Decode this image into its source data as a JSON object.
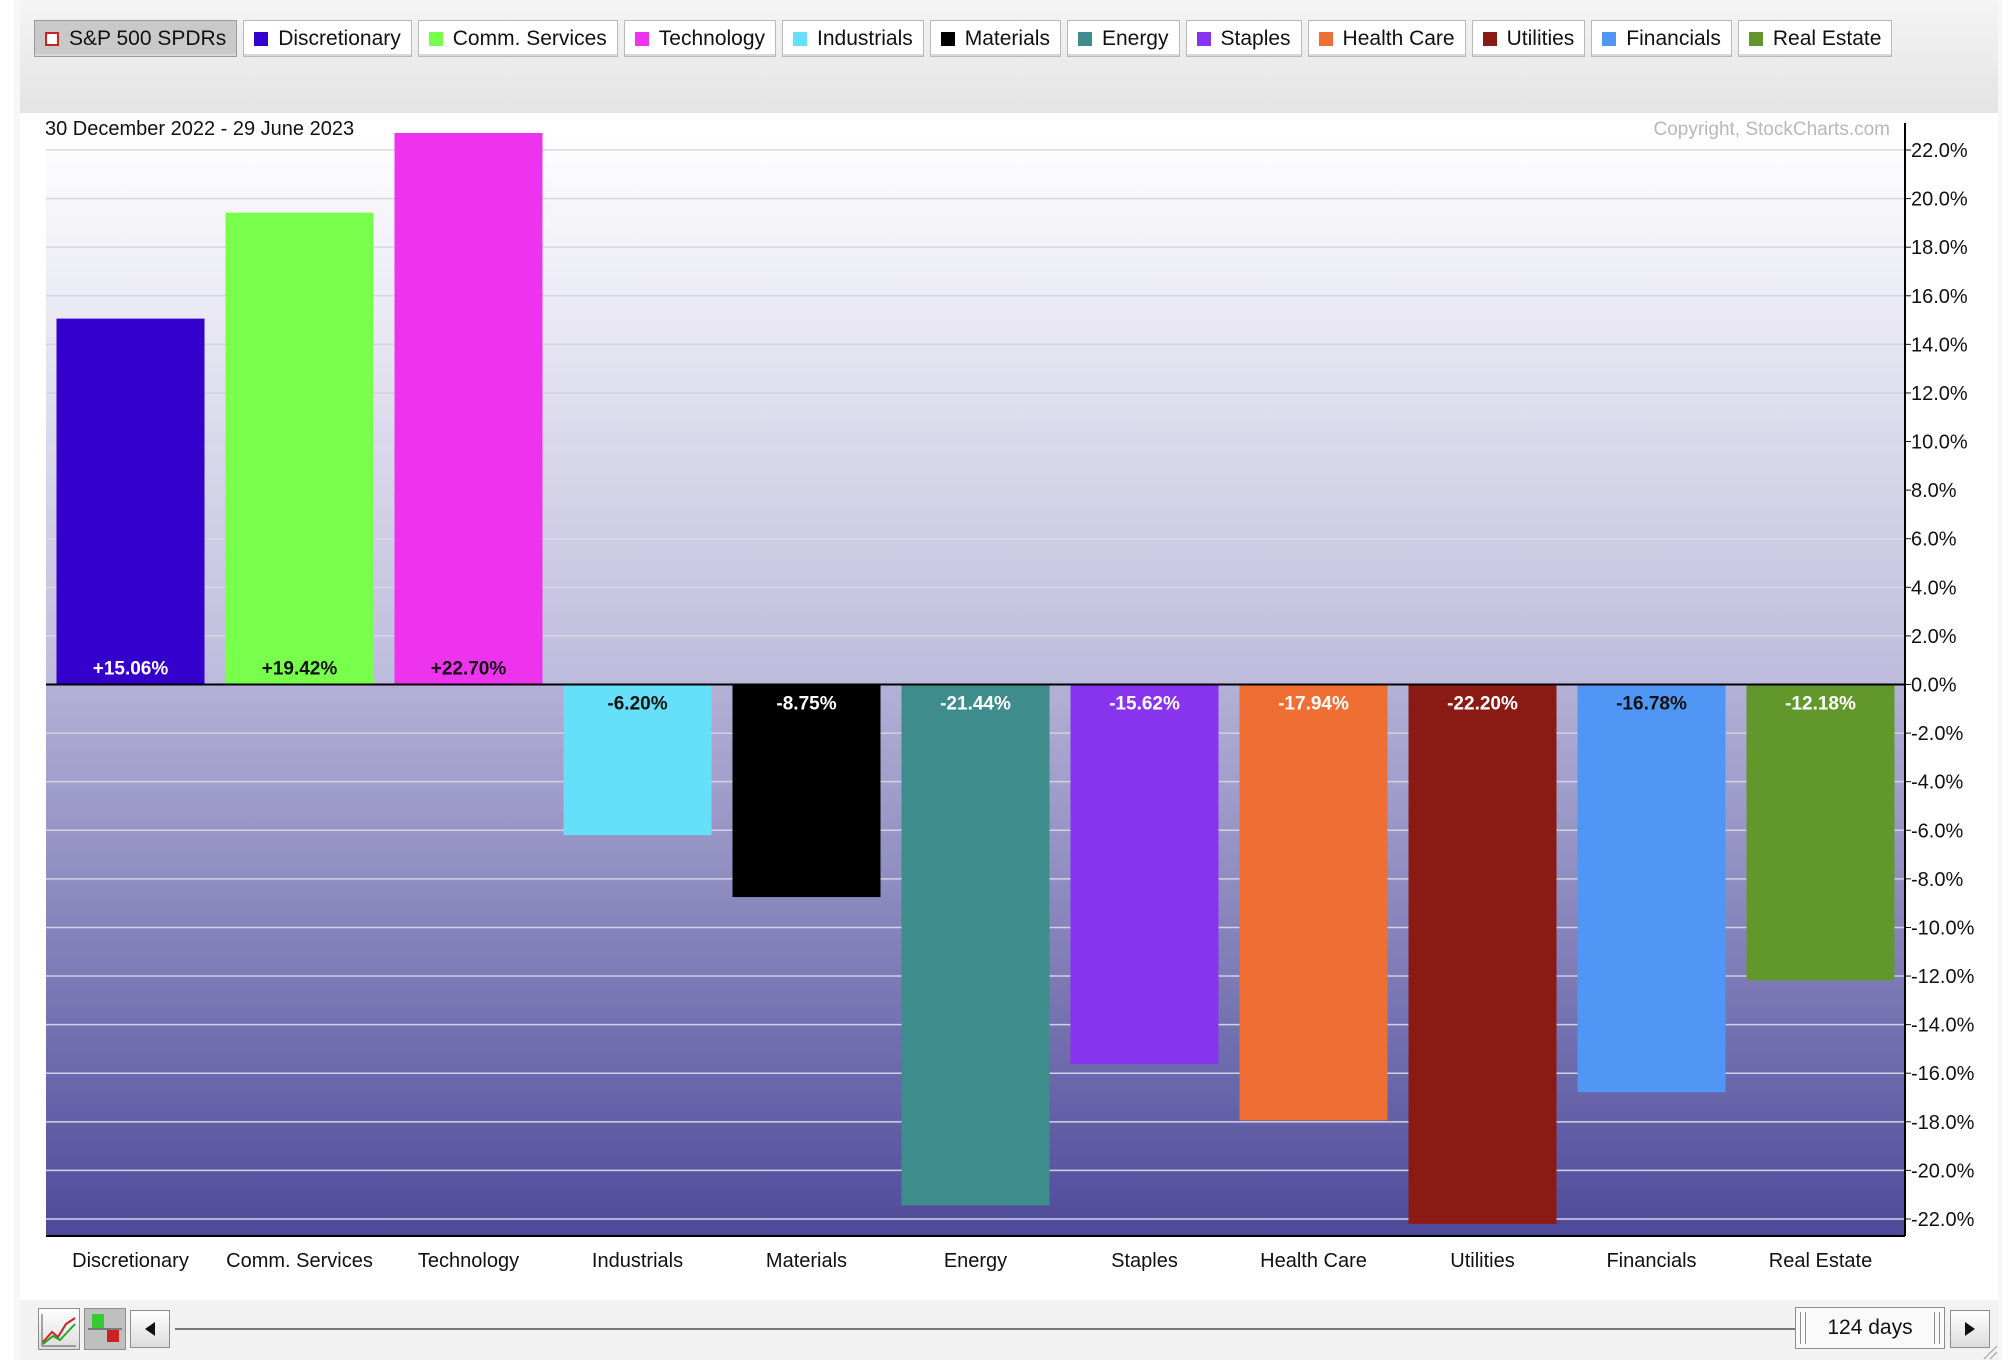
{
  "legend": [
    {
      "label": "S&P 500 SPDRs",
      "color": "#cc2222",
      "benchmark": true
    },
    {
      "label": "Discretionary",
      "color": "#3300cc"
    },
    {
      "label": "Comm. Services",
      "color": "#77ff4c"
    },
    {
      "label": "Technology",
      "color": "#ee33ee"
    },
    {
      "label": "Industrials",
      "color": "#66e0f8"
    },
    {
      "label": "Materials",
      "color": "#000000"
    },
    {
      "label": "Energy",
      "color": "#3f8c8c"
    },
    {
      "label": "Staples",
      "color": "#8833ee"
    },
    {
      "label": "Health Care",
      "color": "#ee6e33"
    },
    {
      "label": "Utilities",
      "color": "#8b1a14"
    },
    {
      "label": "Financials",
      "color": "#5097f5"
    },
    {
      "label": "Real Estate",
      "color": "#62982b"
    }
  ],
  "chart": {
    "date_range": "30 December 2022 - 29 June 2023",
    "copyright": "Copyright, StockCharts.com"
  },
  "chart_data": {
    "type": "bar",
    "categories": [
      "Discretionary",
      "Comm. Services",
      "Technology",
      "Industrials",
      "Materials",
      "Energy",
      "Staples",
      "Health Care",
      "Utilities",
      "Financials",
      "Real Estate"
    ],
    "values": [
      15.06,
      19.42,
      22.7,
      -6.2,
      -8.75,
      -21.44,
      -15.62,
      -17.94,
      -22.2,
      -16.78,
      -12.18
    ],
    "value_labels": [
      "+15.06%",
      "+19.42%",
      "+22.70%",
      "-6.20%",
      "-8.75%",
      "-21.44%",
      "-15.62%",
      "-17.94%",
      "-22.20%",
      "-16.78%",
      "-12.18%"
    ],
    "colors": [
      "#3300cc",
      "#77ff4c",
      "#ee33ee",
      "#66e0f8",
      "#000000",
      "#3f8c8c",
      "#8833ee",
      "#ee6e33",
      "#8b1a14",
      "#5097f5",
      "#62982b"
    ],
    "value_label_colors": [
      "#ffffff",
      "#111111",
      "#111111",
      "#111111",
      "#ffffff",
      "#ffffff",
      "#ffffff",
      "#ffffff",
      "#ffffff",
      "#111111",
      "#ffffff"
    ],
    "y_ticks": [
      22,
      20,
      18,
      16,
      14,
      12,
      10,
      8,
      6,
      4,
      2,
      0,
      -2,
      -4,
      -6,
      -8,
      -10,
      -12,
      -14,
      -16,
      -18,
      -20,
      -22
    ],
    "y_tick_labels": [
      "22.0%",
      "20.0%",
      "18.0%",
      "16.0%",
      "14.0%",
      "12.0%",
      "10.0%",
      "8.0%",
      "6.0%",
      "4.0%",
      "2.0%",
      "0.0%",
      "-2.0%",
      "-4.0%",
      "-6.0%",
      "-8.0%",
      "-10.0%",
      "-12.0%",
      "-14.0%",
      "-16.0%",
      "-18.0%",
      "-20.0%",
      "-22.0%"
    ],
    "ylim": [
      -22.7,
      22.7
    ],
    "y_axis_position": "right",
    "grid": true
  },
  "footer": {
    "days_label": "124 days"
  }
}
